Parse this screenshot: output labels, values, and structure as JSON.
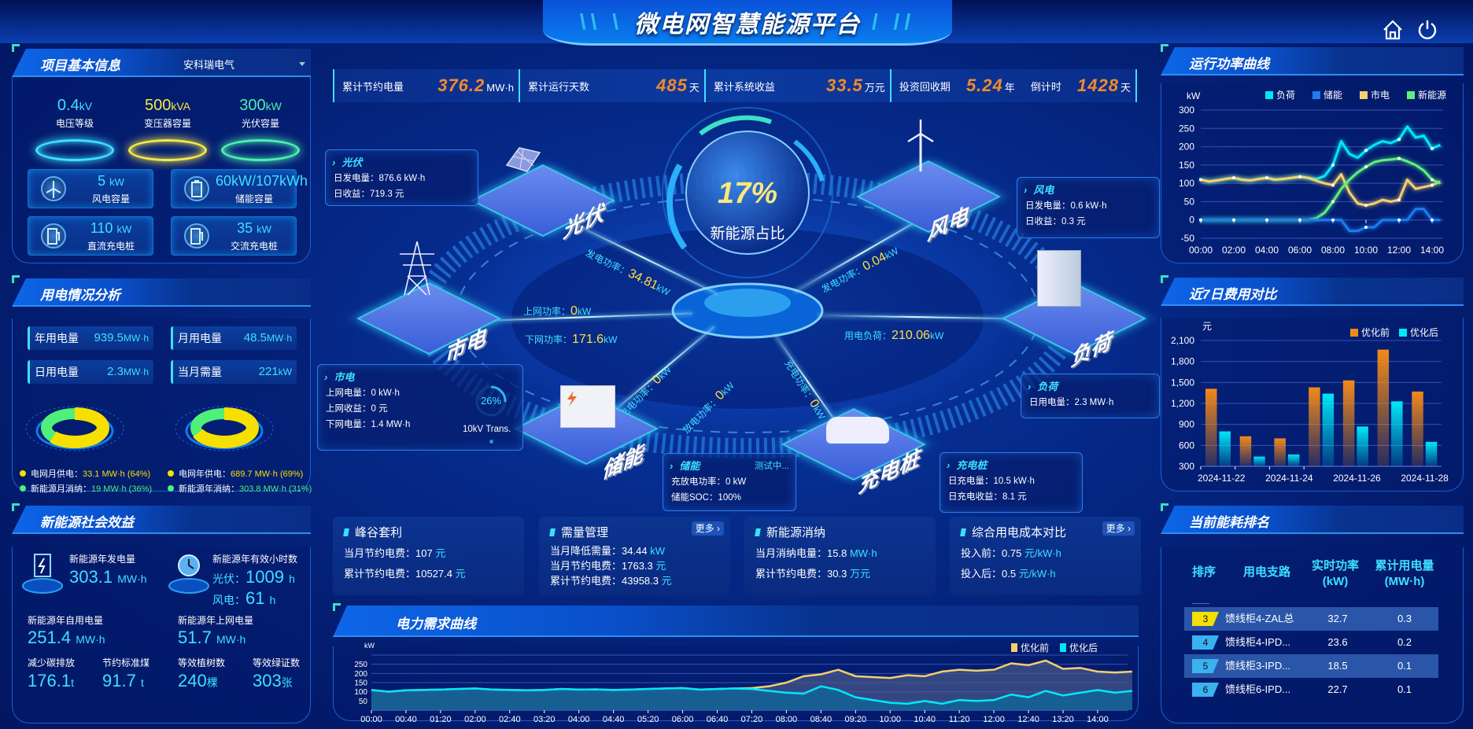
{
  "header": {
    "title": "微电网智慧能源平台",
    "home_icon": "home-icon",
    "power_icon": "power-icon"
  },
  "stats": [
    {
      "label": "累计节约电量",
      "value": "376.2",
      "unit": "MW·h"
    },
    {
      "label": "累计运行天数",
      "value": "485",
      "unit": "天"
    },
    {
      "label": "累计系统收益",
      "value": "33.5",
      "unit": "万元"
    },
    {
      "label": "投资回收期",
      "value": "5.24",
      "unit": "年",
      "label2": "倒计时",
      "value2": "1428",
      "unit2": "天"
    }
  ],
  "project": {
    "title": "项目基本信息",
    "company": "安科瑞电气",
    "levels": [
      {
        "value": "0.4",
        "unit": "kV",
        "label": "电压等级",
        "color": "#3ee0ff"
      },
      {
        "value": "500",
        "unit": "kVA",
        "label": "变压器容量",
        "color": "#f5e84a"
      },
      {
        "value": "300",
        "unit": "kW",
        "label": "光伏容量",
        "color": "#4ef0b0"
      }
    ],
    "caps": [
      {
        "value": "5",
        "unit": "kW",
        "label": "风电容量",
        "icon": "wind-turbine-icon"
      },
      {
        "value": "60kW/107kWh",
        "unit": "",
        "label": "储能容量",
        "icon": "battery-icon"
      },
      {
        "value": "110",
        "unit": "kW",
        "label": "直流充电桩",
        "icon": "charger-icon"
      },
      {
        "value": "35",
        "unit": "kW",
        "label": "交流充电桩",
        "icon": "charger-icon"
      }
    ]
  },
  "usage": {
    "title": "用电情况分析",
    "items": [
      {
        "label": "年用电量",
        "value": "939.5",
        "unit": "MW·h"
      },
      {
        "label": "月用电量",
        "value": "48.5",
        "unit": "MW·h"
      },
      {
        "label": "日用电量",
        "value": "2.3",
        "unit": "MW·h"
      },
      {
        "label": "当月需量",
        "value": "221",
        "unit": "kW"
      }
    ],
    "donuts": [
      {
        "grid_pct": 64,
        "legend": [
          {
            "label": "电网月供电：",
            "value": "33.1 MW·h (64%)",
            "color": "#f5e000"
          },
          {
            "label": "新能源月消纳：",
            "value": "19 MW·h (36%)",
            "color": "#4ef07a"
          }
        ]
      },
      {
        "grid_pct": 69,
        "legend": [
          {
            "label": "电网年供电：",
            "value": "689.7 MW·h (69%)",
            "color": "#f5e000"
          },
          {
            "label": "新能源年消纳：",
            "value": "303.8 MW·h (31%)",
            "color": "#4ef07a"
          }
        ]
      }
    ]
  },
  "social": {
    "title": "新能源社会效益",
    "gen_label": "新能源年发电量",
    "gen_value": "303.1",
    "gen_unit": "MW·h",
    "hours_label": "新能源年有效小时数",
    "pv_label": "光伏：",
    "pv_value": "1009",
    "wind_label": "风电：",
    "wind_value": "61",
    "hours_unit": "h",
    "self_label": "新能源年自用电量",
    "self_value": "251.4",
    "self_unit": "MW·h",
    "grid_label": "新能源年上网电量",
    "grid_value": "51.7",
    "grid_unit": "MW·h",
    "carbon_label": "减少碳排放",
    "carbon_value": "176.1",
    "carbon_unit": "t",
    "coal_label": "节约标准煤",
    "coal_value": "91.7",
    "coal_unit": "t",
    "tree_label": "等效植树数",
    "tree_value": "240",
    "tree_unit": "棵",
    "cert_label": "等效绿证数",
    "cert_value": "303",
    "cert_unit": "张"
  },
  "scene": {
    "ratio": "17%",
    "ratio_label": "新能源占比",
    "nodes": {
      "pv": "光伏",
      "wind": "风电",
      "grid": "市电",
      "load": "负荷",
      "storage": "储能",
      "charger": "充电桩"
    },
    "flows": {
      "pv": {
        "label": "发电功率：",
        "value": "34.81",
        "unit": "kW"
      },
      "wind": {
        "label": "发电功率：",
        "value": "0.04",
        "unit": "kW"
      },
      "grid_up": {
        "label": "上网功率：",
        "value": "0",
        "unit": "kW"
      },
      "grid_down": {
        "label": "下网功率：",
        "value": "171.6",
        "unit": "kW"
      },
      "load": {
        "label": "用电负荷：",
        "value": "210.06",
        "unit": "kW"
      },
      "st_charge": {
        "label": "充电功率：",
        "value": "0",
        "unit": "kW"
      },
      "st_discharge": {
        "label": "放电功率：",
        "value": "0",
        "unit": "kW"
      },
      "charger": {
        "label": "充电功率：",
        "value": "0",
        "unit": "kW"
      }
    },
    "boxes": {
      "pv": {
        "title": "光伏",
        "lines": [
          "日发电量：876.6 kW·h",
          "日收益：719.3 元"
        ]
      },
      "wind": {
        "title": "风电",
        "lines": [
          "日发电量：0.6 kW·h",
          "日收益：0.3 元"
        ]
      },
      "grid": {
        "title": "市电",
        "lines": [
          "上网电量：0 kW·h",
          "上网收益：0 元",
          "下网电量：1.4 MW·h"
        ],
        "gauge": "26%",
        "gauge_pct": 26,
        "gauge_label": "10kV Trans."
      },
      "load": {
        "title": "负荷",
        "lines": [
          "日用电量：2.3 MW·h"
        ]
      },
      "storage": {
        "title": "储能",
        "status": "测试中...",
        "lines": [
          "充放电功率：0 kW",
          "储能SOC：100%"
        ]
      },
      "charger": {
        "title": "充电桩",
        "lines": [
          "日充电量：10.5 kW·h",
          "日充电收益：8.1 元"
        ]
      }
    }
  },
  "cards": [
    {
      "title": "峰谷套利",
      "rows": [
        {
          "label": "当月节约电费：",
          "value": "107",
          "unit": "元"
        },
        {
          "label": "累计节约电费：",
          "value": "10527.4",
          "unit": "元"
        }
      ]
    },
    {
      "title": "需量管理",
      "more": "更多 ›",
      "rows": [
        {
          "label": "当月降低需量：",
          "value": "34.44",
          "unit": "kW"
        },
        {
          "label": "当月节约电费：",
          "value": "1763.3",
          "unit": "元"
        },
        {
          "label": "累计节约电费：",
          "value": "43958.3",
          "unit": "元"
        }
      ]
    },
    {
      "title": "新能源消纳",
      "rows": [
        {
          "label": "当月消纳电量：",
          "value": "15.8",
          "unit": "MW·h"
        },
        {
          "label": "累计节约电费：",
          "value": "30.3",
          "unit": "万元"
        }
      ]
    },
    {
      "title": "综合用电成本对比",
      "more": "更多 ›",
      "rows": [
        {
          "label": "投入前：",
          "value": "0.75",
          "unit": "元/kW·h"
        },
        {
          "label": "投入后：",
          "value": "0.5",
          "unit": "元/kW·h"
        }
      ]
    }
  ],
  "right": {
    "power_title": "运行功率曲线",
    "cost_title": "近7日费用对比",
    "rank_title": "当前能耗排名"
  },
  "ranking": {
    "headers": [
      "排序",
      "用电支路",
      "实时功率\n(kW)",
      "累计用电量\n(MW·h)"
    ],
    "rows": [
      {
        "rank": "3",
        "name": "馈线柜4-ZAL总",
        "power": "32.7",
        "energy": "0.3",
        "color": "#f5e000"
      },
      {
        "rank": "4",
        "name": "馈线柜4-IPD...",
        "power": "23.6",
        "energy": "0.2",
        "color": "#3ab2f0"
      },
      {
        "rank": "5",
        "name": "馈线柜3-IPD...",
        "power": "18.5",
        "energy": "0.1",
        "color": "#3ab2f0"
      },
      {
        "rank": "6",
        "name": "馈线柜6-IPD...",
        "power": "22.7",
        "energy": "0.1",
        "color": "#3ab2f0"
      }
    ]
  },
  "demand_title": "电力需求曲线",
  "chart_data": [
    {
      "id": "power",
      "type": "line",
      "ylabel": "kW",
      "ylim": [
        -50,
        300
      ],
      "yticks": [
        -50,
        0,
        50,
        100,
        150,
        200,
        250,
        300
      ],
      "xticks": [
        "00:00",
        "02:00",
        "04:00",
        "06:00",
        "08:00",
        "10:00",
        "12:00",
        "14:00"
      ],
      "x": [
        "00:00",
        "00:30",
        "01:00",
        "01:30",
        "02:00",
        "02:30",
        "03:00",
        "03:30",
        "04:00",
        "04:30",
        "05:00",
        "05:30",
        "06:00",
        "06:30",
        "07:00",
        "07:30",
        "08:00",
        "08:30",
        "09:00",
        "09:30",
        "10:00",
        "10:30",
        "11:00",
        "11:30",
        "12:00",
        "12:30",
        "13:00",
        "13:30",
        "14:00",
        "14:30"
      ],
      "grid": true,
      "legend": "top",
      "series": [
        {
          "name": "负荷",
          "color": "#00e8f8",
          "values": [
            110,
            105,
            108,
            112,
            115,
            110,
            108,
            112,
            115,
            110,
            112,
            115,
            118,
            115,
            112,
            120,
            150,
            215,
            180,
            170,
            190,
            205,
            215,
            210,
            220,
            255,
            225,
            230,
            195,
            205
          ]
        },
        {
          "name": "储能",
          "color": "#1a7ef0",
          "values": [
            0,
            0,
            0,
            0,
            0,
            0,
            0,
            0,
            0,
            0,
            0,
            0,
            0,
            0,
            0,
            0,
            0,
            0,
            -30,
            -30,
            -20,
            -20,
            0,
            0,
            0,
            0,
            30,
            30,
            0,
            0
          ]
        },
        {
          "name": "市电",
          "color": "#f5d06a",
          "values": [
            110,
            105,
            108,
            112,
            115,
            110,
            108,
            112,
            115,
            110,
            112,
            115,
            118,
            115,
            107,
            100,
            95,
            125,
            75,
            45,
            40,
            45,
            55,
            50,
            55,
            110,
            85,
            90,
            95,
            105
          ]
        },
        {
          "name": "新能源",
          "color": "#5ef07a",
          "values": [
            0,
            0,
            0,
            0,
            0,
            0,
            0,
            0,
            0,
            0,
            0,
            0,
            0,
            0,
            5,
            20,
            50,
            85,
            110,
            130,
            145,
            158,
            163,
            165,
            168,
            160,
            150,
            135,
            110,
            100
          ]
        }
      ]
    },
    {
      "id": "cost",
      "type": "bar",
      "ylabel": "元",
      "ylim": [
        300,
        2100
      ],
      "yticks": [
        300,
        600,
        900,
        1200,
        1500,
        1800,
        2100
      ],
      "grid": true,
      "legend": "top-right",
      "categories": [
        "2024-11-22",
        "2024-11-23",
        "2024-11-24",
        "2024-11-25",
        "2024-11-26",
        "2024-11-27",
        "2024-11-28"
      ],
      "xticks": [
        "2024-11-22",
        "2024-11-24",
        "2024-11-26",
        "2024-11-28"
      ],
      "series": [
        {
          "name": "优化前",
          "color": "#f28a1a",
          "values": [
            1410,
            730,
            700,
            1430,
            1530,
            1970,
            1370
          ]
        },
        {
          "name": "优化后",
          "color": "#00e8f8",
          "values": [
            800,
            440,
            470,
            1340,
            870,
            1230,
            650
          ]
        }
      ]
    },
    {
      "id": "demand",
      "type": "area",
      "ylabel": "kW",
      "ylim": [
        0,
        300
      ],
      "yticks": [
        50,
        100,
        150,
        200,
        250
      ],
      "grid": true,
      "legend": "top-right",
      "xticks": [
        "00:00",
        "00:40",
        "01:20",
        "02:00",
        "02:40",
        "03:20",
        "04:00",
        "04:40",
        "05:20",
        "06:00",
        "06:40",
        "07:20",
        "08:00",
        "08:40",
        "09:20",
        "10:00",
        "10:40",
        "11:20",
        "12:00",
        "12:40",
        "13:20",
        "14:00"
      ],
      "x_step_minutes": 20,
      "series": [
        {
          "name": "优化前",
          "color": "#f5d06a",
          "values": [
            110,
            100,
            108,
            110,
            112,
            115,
            118,
            112,
            110,
            108,
            110,
            115,
            112,
            113,
            110,
            112,
            115,
            118,
            120,
            112,
            115,
            118,
            120,
            130,
            150,
            185,
            195,
            220,
            185,
            180,
            175,
            190,
            185,
            210,
            220,
            215,
            220,
            255,
            245,
            270,
            225,
            230,
            210,
            205,
            210
          ]
        },
        {
          "name": "优化后",
          "color": "#00e8f8",
          "values": [
            110,
            100,
            108,
            110,
            112,
            115,
            118,
            112,
            110,
            108,
            110,
            115,
            112,
            113,
            110,
            112,
            115,
            118,
            120,
            112,
            115,
            118,
            115,
            105,
            95,
            90,
            130,
            110,
            70,
            55,
            40,
            35,
            50,
            35,
            55,
            50,
            55,
            85,
            70,
            105,
            80,
            95,
            110,
            95,
            105
          ]
        }
      ]
    }
  ]
}
